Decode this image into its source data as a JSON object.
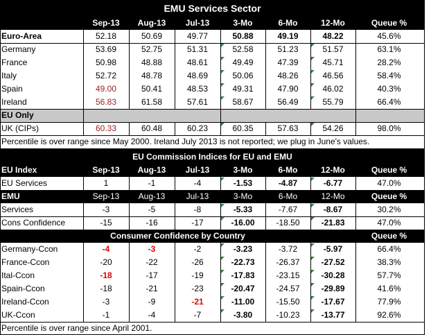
{
  "chart_data": {
    "type": "table",
    "title": "EMU Services Sector",
    "columns": [
      "Sep-13",
      "Aug-13",
      "Jul-13",
      "3-Mo",
      "6-Mo",
      "12-Mo",
      "Queue %"
    ],
    "services": {
      "rows": [
        {
          "label": "Euro-Area",
          "values": [
            "52.18",
            "50.69",
            "49.77",
            "50.88",
            "49.19",
            "48.22",
            "45.6%"
          ]
        },
        {
          "label": "Germany",
          "values": [
            "53.69",
            "52.75",
            "51.31",
            "52.58",
            "51.23",
            "51.57",
            "63.1%"
          ]
        },
        {
          "label": "France",
          "values": [
            "50.98",
            "48.88",
            "48.61",
            "49.49",
            "47.39",
            "45.71",
            "28.2%"
          ]
        },
        {
          "label": "Italy",
          "values": [
            "52.72",
            "48.78",
            "48.69",
            "50.06",
            "48.26",
            "46.56",
            "58.4%"
          ]
        },
        {
          "label": "Spain",
          "values": [
            "49.00",
            "50.41",
            "48.53",
            "49.31",
            "47.90",
            "46.02",
            "40.3%"
          ]
        },
        {
          "label": "Ireland",
          "values": [
            "56.83",
            "61.58",
            "57.61",
            "58.67",
            "56.49",
            "55.79",
            "66.4%"
          ]
        }
      ],
      "eu_only_label": "EU Only",
      "uk": {
        "label": "UK (CIPs)",
        "values": [
          "60.33",
          "60.48",
          "60.23",
          "60.35",
          "57.63",
          "54.26",
          "98.0%"
        ]
      },
      "note": "Percentile is over range since May 2000. Ireland July 2013 is not reported; we plug in June's values."
    },
    "commission": {
      "title": "EU Commission Indices for EU and EMU",
      "eu_index_label": "EU Index",
      "eu_rows": [
        {
          "label": "EU Services",
          "values": [
            "1",
            "-1",
            "-4",
            "-1.53",
            "-4.87",
            "-6.77",
            "47.0%"
          ]
        }
      ],
      "emu_label": "EMU",
      "emu_rows": [
        {
          "label": "Services",
          "values": [
            "-3",
            "-5",
            "-8",
            "-5.33",
            "-7.67",
            "-8.67",
            "30.2%"
          ]
        },
        {
          "label": "Cons Confidence",
          "values": [
            "-15",
            "-16",
            "-17",
            "-16.00",
            "-18.50",
            "-21.83",
            "47.0%"
          ]
        }
      ]
    },
    "confidence": {
      "title": "Consumer Confidence by Country",
      "queue_label": "Queue %",
      "rows": [
        {
          "label": "Germany-Ccon",
          "values": [
            "-4",
            "-3",
            "-2",
            "-3.23",
            "-3.72",
            "-5.97",
            "66.4%"
          ]
        },
        {
          "label": "France-Ccon",
          "values": [
            "-20",
            "-22",
            "-26",
            "-22.73",
            "-26.37",
            "-27.52",
            "38.3%"
          ]
        },
        {
          "label": "Ital-Ccon",
          "values": [
            "-18",
            "-17",
            "-19",
            "-17.83",
            "-23.15",
            "-30.28",
            "57.7%"
          ]
        },
        {
          "label": "Spain-Ccon",
          "values": [
            "-18",
            "-21",
            "-23",
            "-20.47",
            "-24.57",
            "-29.89",
            "41.6%"
          ]
        },
        {
          "label": "Ireland-Ccon",
          "values": [
            "-3",
            "-9",
            "-21",
            "-11.00",
            "-15.50",
            "-17.67",
            "77.9%"
          ]
        },
        {
          "label": "UK-Ccon",
          "values": [
            "-1",
            "-4",
            "-7",
            "-3.80",
            "-10.23",
            "-13.77",
            "92.6%"
          ]
        }
      ],
      "note": "Percentile is over range since April 2001."
    },
    "colors": {
      "highlight_red": "#9b1c1c",
      "bright_red": "#e00000",
      "header_gray": "#c8c8c8",
      "header_black": "#000000",
      "marker_green": "#2e8b3a"
    }
  }
}
